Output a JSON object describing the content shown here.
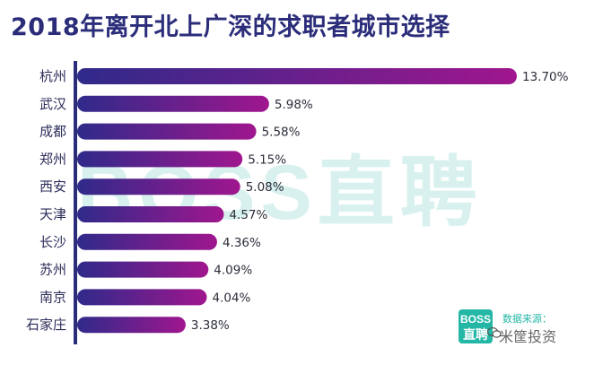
{
  "watermark": "BOSS直聘",
  "source": {
    "logo_line1": "BOSS",
    "logo_line2": "直聘",
    "label": "数据来源：",
    "credit": "米筐投资"
  },
  "colors": {
    "bar_start": "#2f2a8a",
    "bar_end": "#a0168e",
    "axis": "#2b2d7a",
    "title": "#2b2d7a"
  },
  "chart_data": {
    "type": "bar",
    "orientation": "horizontal",
    "title": "2018年离开北上广深的求职者城市选择",
    "categories": [
      "杭州",
      "武汉",
      "成都",
      "郑州",
      "西安",
      "天津",
      "长沙",
      "苏州",
      "南京",
      "石家庄"
    ],
    "values": [
      13.7,
      5.98,
      5.58,
      5.15,
      5.08,
      4.57,
      4.36,
      4.09,
      4.04,
      3.38
    ],
    "value_labels": [
      "13.70%",
      "5.98%",
      "5.58%",
      "5.15%",
      "5.08%",
      "4.57%",
      "4.36%",
      "4.09%",
      "4.04%",
      "3.38%"
    ],
    "unit": "%",
    "xlabel": "",
    "ylabel": "",
    "xlim": [
      0,
      13.7
    ],
    "grid": false,
    "legend": "none"
  }
}
